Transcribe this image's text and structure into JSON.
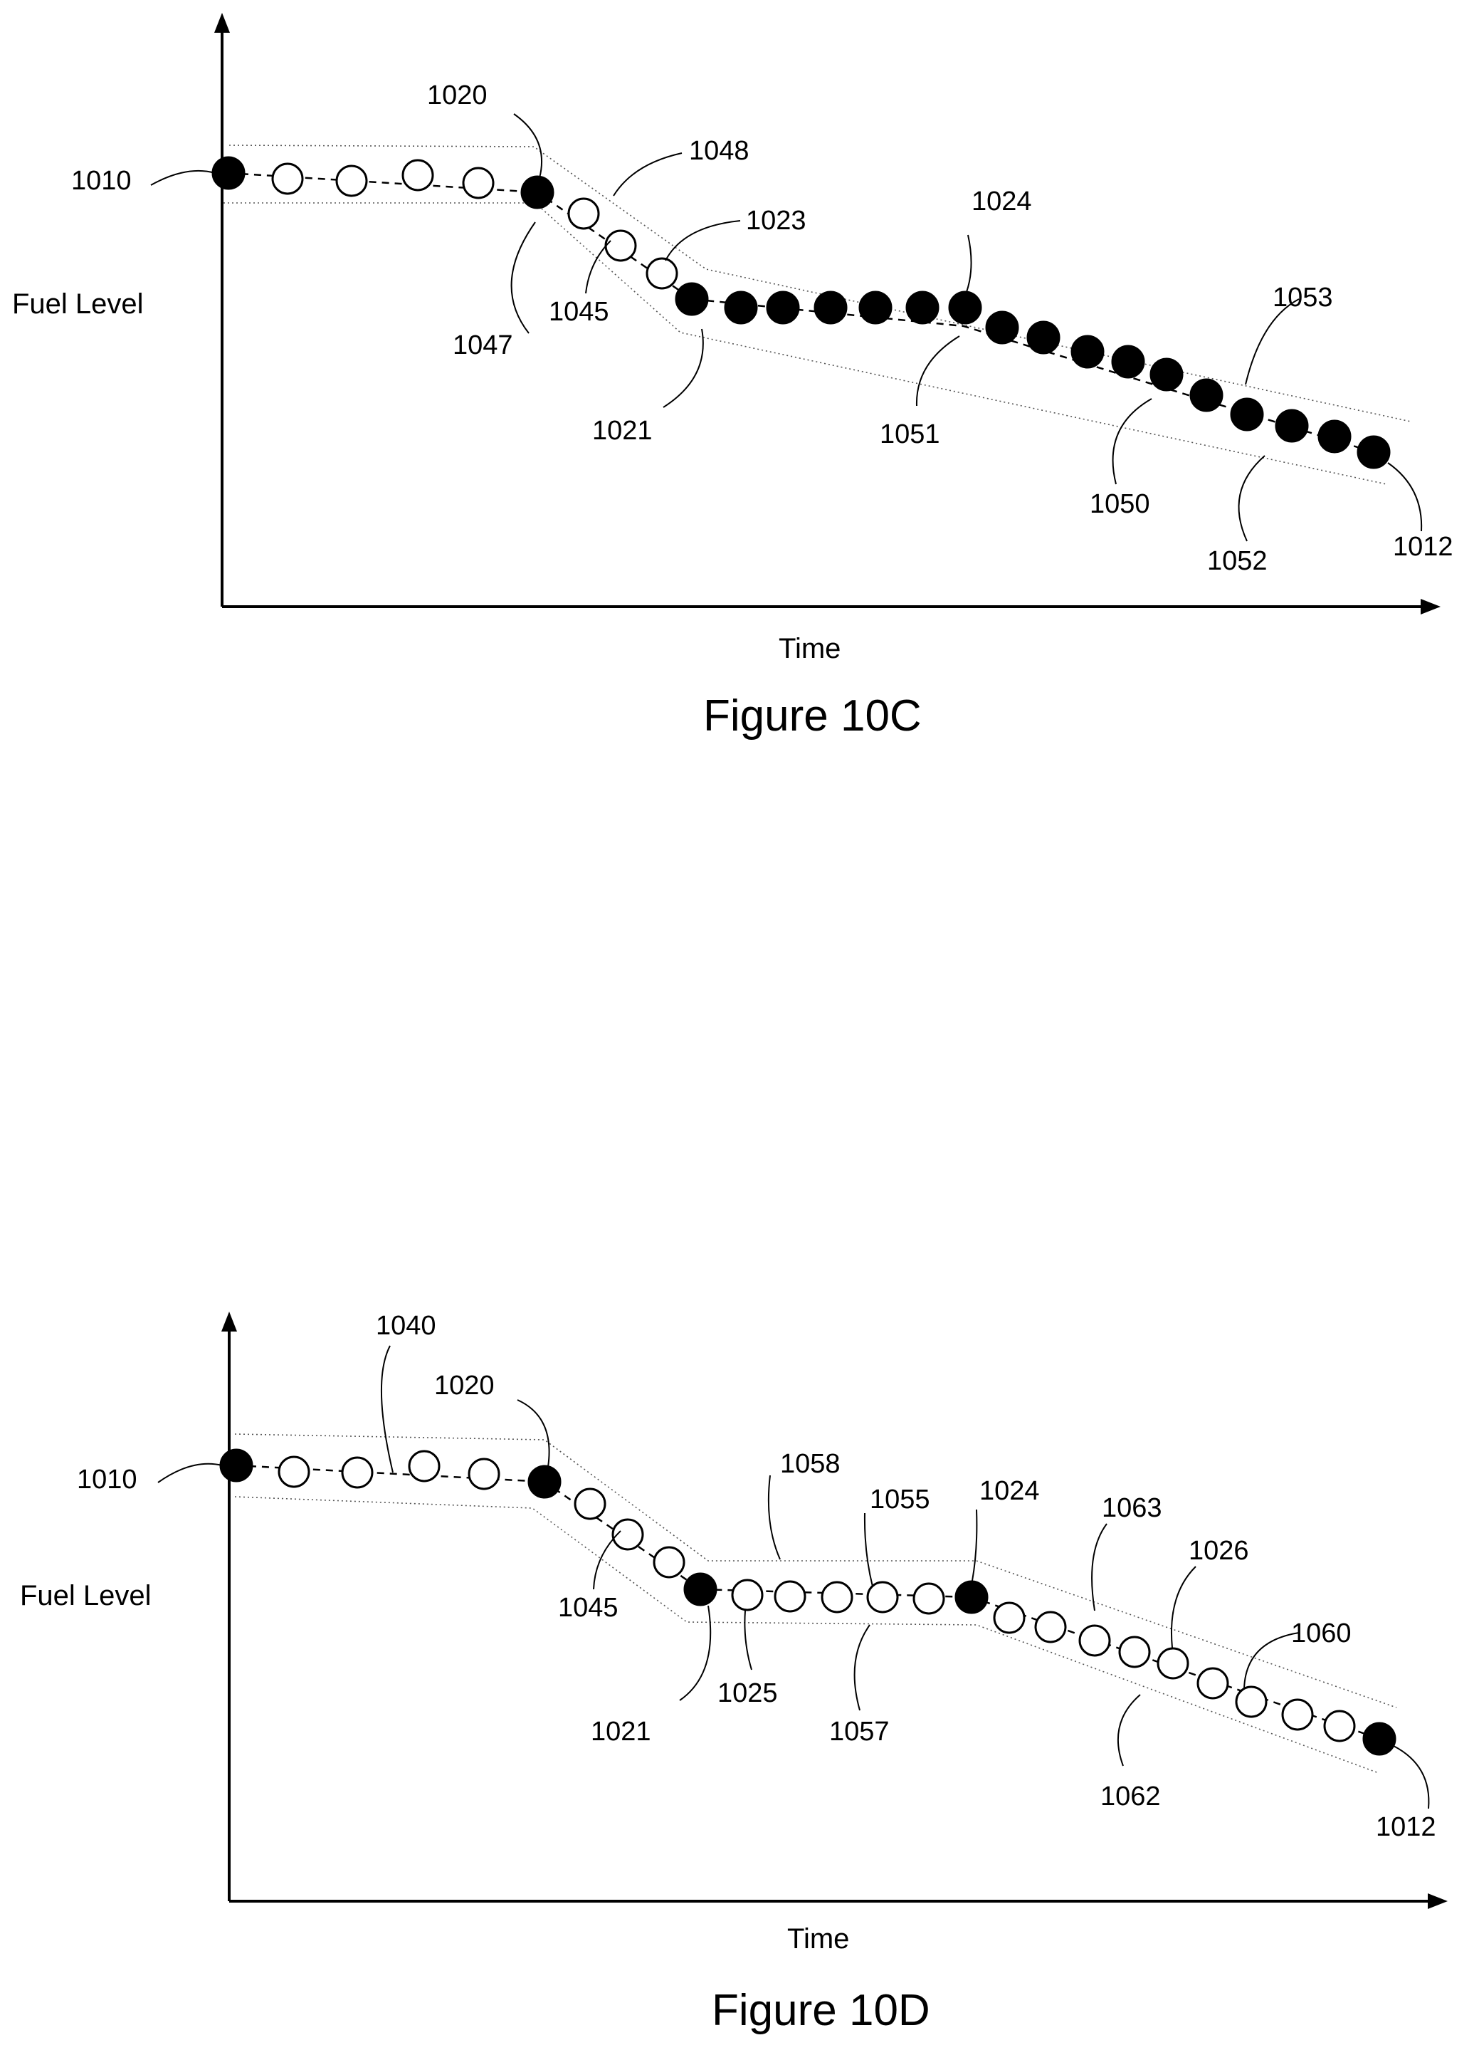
{
  "figures": [
    {
      "caption": "Figure 10C",
      "xlabel": "Time",
      "ylabel": "Fuel Level",
      "refs": {
        "r1010": "1010",
        "r1020": "1020",
        "r1048": "1048",
        "r1023": "1023",
        "r1024": "1024",
        "r1053": "1053",
        "r1047": "1047",
        "r1045": "1045",
        "r1021": "1021",
        "r1051": "1051",
        "r1050": "1050",
        "r1052": "1052",
        "r1012": "1012"
      }
    },
    {
      "caption": "Figure 10D",
      "xlabel": "Time",
      "ylabel": "Fuel Level",
      "refs": {
        "r1040": "1040",
        "r1020": "1020",
        "r1010": "1010",
        "r1058": "1058",
        "r1055": "1055",
        "r1024": "1024",
        "r1063": "1063",
        "r1026": "1026",
        "r1060": "1060",
        "r1045": "1045",
        "r1025": "1025",
        "r1057": "1057",
        "r1021": "1021",
        "r1062": "1062",
        "r1012": "1012"
      }
    }
  ],
  "colors": {
    "ink": "#000000",
    "band": "#555555",
    "background": "#ffffff"
  }
}
